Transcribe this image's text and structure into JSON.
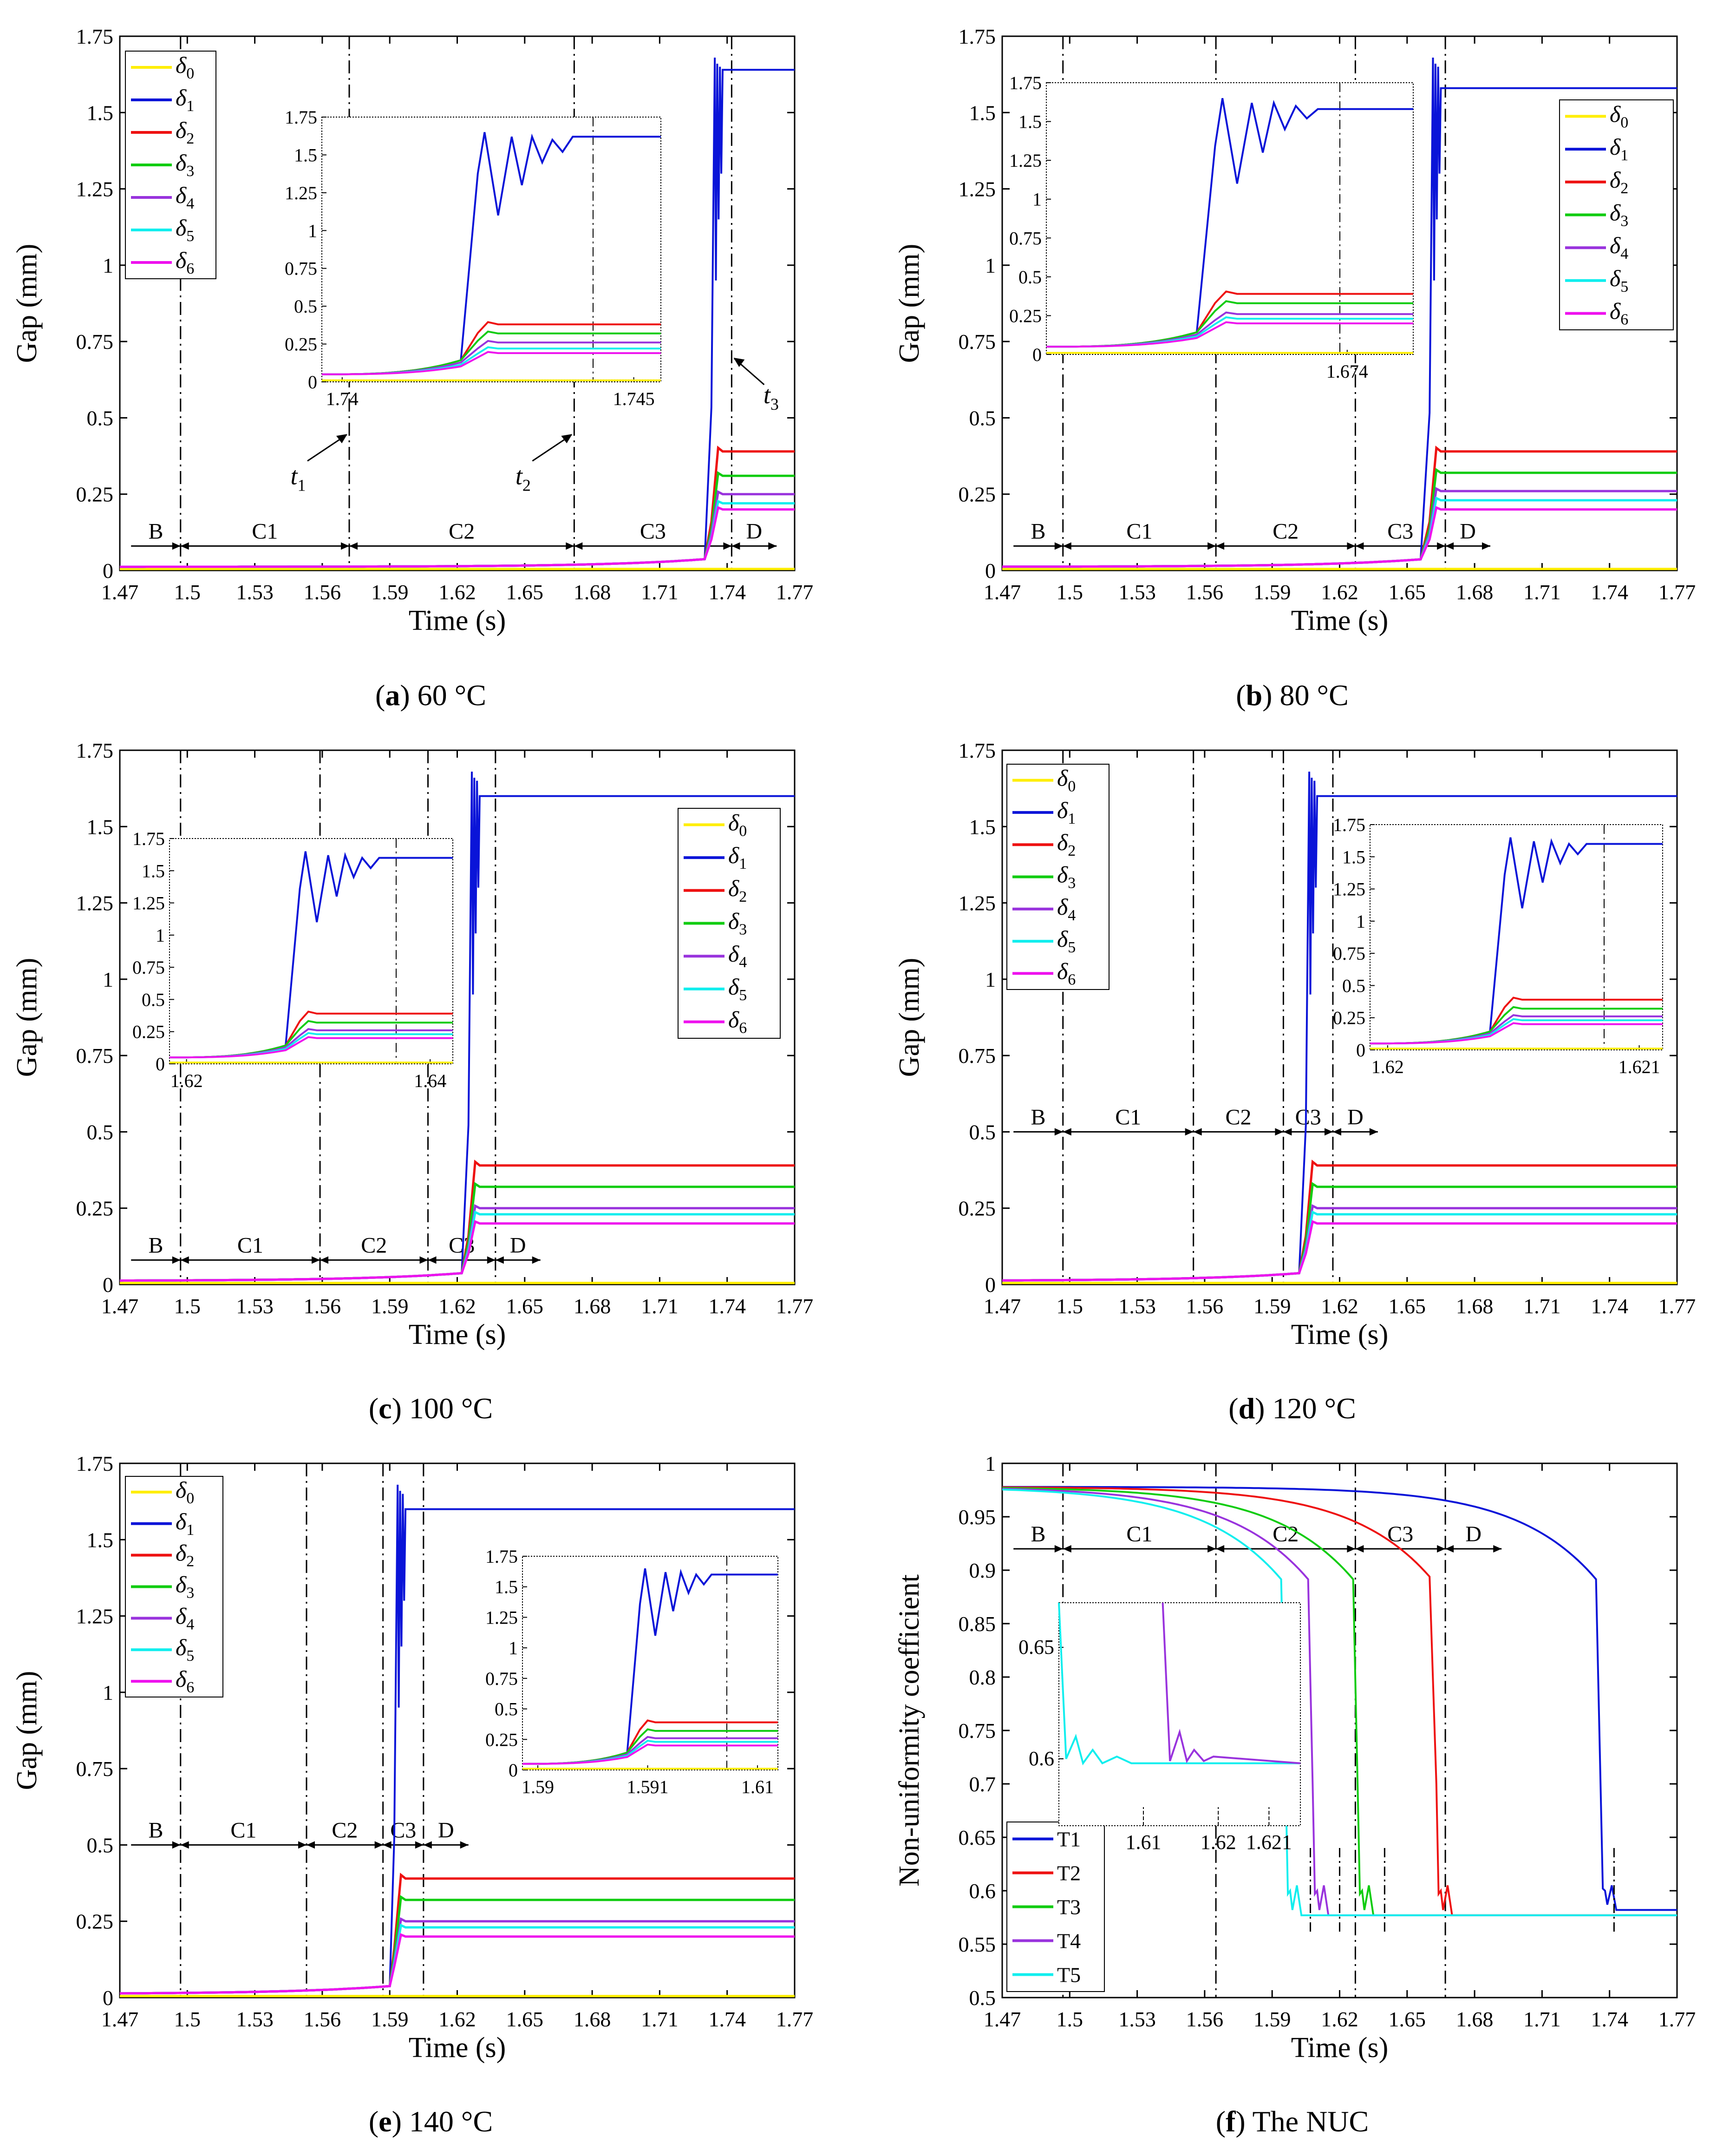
{
  "colors": {
    "d0": "#ffee00",
    "d1": "#0a14d8",
    "d2": "#ee1111",
    "d3": "#11cc11",
    "d4": "#9933dd",
    "d5": "#11eeee",
    "d6": "#ee11ee",
    "T1": "#0a14d8",
    "T2": "#ee1111",
    "T3": "#11cc11",
    "T4": "#9933dd",
    "T5": "#11eeee"
  },
  "chart_data": [
    {
      "id": "a",
      "type": "line",
      "caption_letter": "a",
      "caption_text": " 60 °C",
      "xlabel": "Time (s)",
      "ylabel": "Gap (mm)",
      "xlim": [
        1.47,
        1.77
      ],
      "ylim": [
        0,
        1.75
      ],
      "xticks": [
        "1.47",
        "1.5",
        "1.53",
        "1.56",
        "1.59",
        "1.62",
        "1.65",
        "1.68",
        "1.71",
        "1.74",
        "1.77"
      ],
      "yticks": [
        "0",
        "0.25",
        "0.5",
        "0.75",
        "1",
        "1.25",
        "1.5",
        "1.75"
      ],
      "legend": [
        "δ0",
        "δ1",
        "δ2",
        "δ3",
        "δ4",
        "δ5",
        "δ6"
      ],
      "legend_position": "top-left",
      "transition_time": 1.735,
      "final_values": [
        0,
        1.64,
        0.39,
        0.31,
        0.25,
        0.22,
        0.2
      ],
      "phase_lines": [
        1.497,
        1.572,
        1.672,
        1.742
      ],
      "phases": [
        "B",
        "C1",
        "C2",
        "C3",
        "D"
      ],
      "phase_y": 0.08,
      "annotations": [
        "t1",
        "t2",
        "t3"
      ],
      "inset": {
        "xticks": [
          "1.74",
          "1.745"
        ],
        "yticks": [
          "0",
          "0.25",
          "0.5",
          "0.75",
          "1",
          "1.25",
          "1.5",
          "1.75"
        ],
        "final_values": [
          0,
          1.62,
          0.38,
          0.32,
          0.26,
          0.22,
          0.19
        ]
      }
    },
    {
      "id": "b",
      "type": "line",
      "caption_letter": "b",
      "caption_text": " 80 °C",
      "xlabel": "Time (s)",
      "ylabel": "Gap (mm)",
      "xlim": [
        1.47,
        1.77
      ],
      "ylim": [
        0,
        1.75
      ],
      "xticks": [
        "1.47",
        "1.5",
        "1.53",
        "1.56",
        "1.59",
        "1.62",
        "1.65",
        "1.68",
        "1.71",
        "1.74",
        "1.77"
      ],
      "yticks": [
        "0",
        "0.25",
        "0.5",
        "0.75",
        "1",
        "1.25",
        "1.5",
        "1.75"
      ],
      "legend": [
        "δ0",
        "δ1",
        "δ2",
        "δ3",
        "δ4",
        "δ5",
        "δ6"
      ],
      "legend_position": "top-right",
      "transition_time": 1.662,
      "final_values": [
        0,
        1.58,
        0.39,
        0.32,
        0.26,
        0.23,
        0.2
      ],
      "phase_lines": [
        1.497,
        1.565,
        1.627,
        1.667
      ],
      "phases": [
        "B",
        "C1",
        "C2",
        "C3",
        "D"
      ],
      "phase_y": 0.08,
      "inset": {
        "xticks": [
          "1.674"
        ],
        "yticks": [
          "0",
          "0.25",
          "0.5",
          "0.75",
          "1",
          "1.25",
          "1.5",
          "1.75"
        ],
        "final_values": [
          0,
          1.58,
          0.39,
          0.33,
          0.26,
          0.23,
          0.2
        ]
      }
    },
    {
      "id": "c",
      "type": "line",
      "caption_letter": "c",
      "caption_text": " 100 °C",
      "xlabel": "Time (s)",
      "ylabel": "Gap (mm)",
      "xlim": [
        1.47,
        1.77
      ],
      "ylim": [
        0,
        1.75
      ],
      "xticks": [
        "1.47",
        "1.5",
        "1.53",
        "1.56",
        "1.59",
        "1.62",
        "1.65",
        "1.68",
        "1.71",
        "1.74",
        "1.77"
      ],
      "yticks": [
        "0",
        "0.25",
        "0.5",
        "0.75",
        "1",
        "1.25",
        "1.5",
        "1.75"
      ],
      "legend": [
        "δ0",
        "δ1",
        "δ2",
        "δ3",
        "δ4",
        "δ5",
        "δ6"
      ],
      "legend_position": "right",
      "transition_time": 1.627,
      "final_values": [
        0,
        1.6,
        0.39,
        0.32,
        0.25,
        0.23,
        0.2
      ],
      "phase_lines": [
        1.497,
        1.559,
        1.607,
        1.637
      ],
      "phases": [
        "B",
        "C1",
        "C2",
        "C3",
        "D"
      ],
      "phase_y": 0.08,
      "inset": {
        "xticks": [
          "1.62",
          "1.64"
        ],
        "yticks": [
          "0",
          "0.25",
          "0.5",
          "0.75",
          "1",
          "1.25",
          "1.5",
          "1.75"
        ],
        "final_values": [
          0,
          1.6,
          0.39,
          0.32,
          0.26,
          0.23,
          0.2
        ]
      }
    },
    {
      "id": "d",
      "type": "line",
      "caption_letter": "d",
      "caption_text": " 120 °C",
      "xlabel": "Time (s)",
      "ylabel": "Gap (mm)",
      "xlim": [
        1.47,
        1.77
      ],
      "ylim": [
        0,
        1.75
      ],
      "xticks": [
        "1.47",
        "1.5",
        "1.53",
        "1.56",
        "1.59",
        "1.62",
        "1.65",
        "1.68",
        "1.71",
        "1.74",
        "1.77"
      ],
      "yticks": [
        "0",
        "0.25",
        "0.5",
        "0.75",
        "1",
        "1.25",
        "1.5",
        "1.75"
      ],
      "legend": [
        "δ0",
        "δ1",
        "δ2",
        "δ3",
        "δ4",
        "δ5",
        "δ6"
      ],
      "legend_position": "top-left",
      "transition_time": 1.607,
      "final_values": [
        0,
        1.6,
        0.39,
        0.32,
        0.25,
        0.23,
        0.2
      ],
      "phase_lines": [
        1.497,
        1.555,
        1.595,
        1.617
      ],
      "phases": [
        "B",
        "C1",
        "C2",
        "C3",
        "D"
      ],
      "phase_y": 0.5,
      "inset": {
        "xticks": [
          "1.62",
          "1.621"
        ],
        "yticks": [
          "0",
          "0.25",
          "0.5",
          "0.75",
          "1",
          "1.25",
          "1.5",
          "1.75"
        ],
        "final_values": [
          0,
          1.6,
          0.39,
          0.32,
          0.26,
          0.23,
          0.2
        ]
      }
    },
    {
      "id": "e",
      "type": "line",
      "caption_letter": "e",
      "caption_text": " 140 °C",
      "xlabel": "Time (s)",
      "ylabel": "Gap (mm)",
      "xlim": [
        1.47,
        1.77
      ],
      "ylim": [
        0,
        1.75
      ],
      "xticks": [
        "1.47",
        "1.5",
        "1.53",
        "1.56",
        "1.59",
        "1.62",
        "1.65",
        "1.68",
        "1.71",
        "1.74",
        "1.77"
      ],
      "yticks": [
        "0",
        "0.25",
        "0.5",
        "0.75",
        "1",
        "1.25",
        "1.5",
        "1.75"
      ],
      "legend": [
        "δ0",
        "δ1",
        "δ2",
        "δ3",
        "δ4",
        "δ5",
        "δ6"
      ],
      "legend_position": "top-left",
      "transition_time": 1.594,
      "final_values": [
        0,
        1.6,
        0.39,
        0.32,
        0.25,
        0.23,
        0.2
      ],
      "phase_lines": [
        1.497,
        1.553,
        1.587,
        1.605
      ],
      "phases": [
        "B",
        "C1",
        "C2",
        "C3",
        "D"
      ],
      "phase_y": 0.5,
      "inset": {
        "xticks": [
          "1.59",
          "1.591",
          "1.61"
        ],
        "yticks": [
          "0",
          "0.25",
          "0.5",
          "0.75",
          "1",
          "1.25",
          "1.5",
          "1.75"
        ],
        "final_values": [
          0,
          1.6,
          0.39,
          0.32,
          0.26,
          0.23,
          0.2
        ]
      }
    },
    {
      "id": "f",
      "type": "line",
      "caption_letter": "f",
      "caption_text": " The NUC",
      "xlabel": "Time (s)",
      "ylabel": "Non-uniformity coefficient",
      "xlim": [
        1.47,
        1.77
      ],
      "ylim": [
        0.5,
        1
      ],
      "xticks": [
        "1.47",
        "1.5",
        "1.53",
        "1.56",
        "1.59",
        "1.62",
        "1.65",
        "1.68",
        "1.71",
        "1.74",
        "1.77"
      ],
      "yticks": [
        "0.5",
        "0.55",
        "0.6",
        "0.65",
        "0.7",
        "0.75",
        "0.8",
        "0.85",
        "0.9",
        "0.95",
        "1"
      ],
      "legend": [
        "T1",
        "T2",
        "T3",
        "T4",
        "T5"
      ],
      "legend_position": "bottom-left",
      "start_value": 0.978,
      "final_values": [
        0.582,
        0.577,
        0.577,
        0.577,
        0.577
      ],
      "drop_times": [
        1.735,
        1.662,
        1.627,
        1.607,
        1.595
      ],
      "phase_lines": [
        1.497,
        1.565,
        1.627,
        1.667
      ],
      "phases": [
        "B",
        "C1",
        "C2",
        "C3",
        "D"
      ],
      "phase_y": 0.92,
      "inset": {
        "xticks": [
          "1.61",
          "1.62",
          "1.621"
        ],
        "yticks": [
          "0.6",
          "0.65"
        ]
      }
    }
  ]
}
